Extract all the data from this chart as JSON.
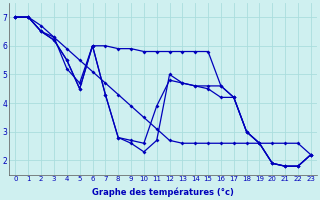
{
  "background_color": "#cff0f0",
  "grid_color": "#aadddd",
  "line_color": "#0000bb",
  "xlim": [
    -0.5,
    23.5
  ],
  "ylim": [
    1.5,
    7.5
  ],
  "yticks": [
    2,
    3,
    4,
    5,
    6,
    7
  ],
  "xticks": [
    0,
    1,
    2,
    3,
    4,
    5,
    6,
    7,
    8,
    9,
    10,
    11,
    12,
    13,
    14,
    15,
    16,
    17,
    18,
    19,
    20,
    21,
    22,
    23
  ],
  "xlabel": "Graphe des températures (°c)",
  "series": [
    [
      7.0,
      7.0,
      6.7,
      6.3,
      5.9,
      5.5,
      5.1,
      4.7,
      4.3,
      3.9,
      3.5,
      3.1,
      2.7,
      2.6,
      2.6,
      2.6,
      2.6,
      2.6,
      2.6,
      2.6,
      2.6,
      2.6,
      2.6,
      2.2
    ],
    [
      7.0,
      7.0,
      6.5,
      6.3,
      5.2,
      4.7,
      6.0,
      6.0,
      5.9,
      5.9,
      5.8,
      5.8,
      5.8,
      5.8,
      5.8,
      5.8,
      4.6,
      4.2,
      3.0,
      2.6,
      1.9,
      1.8,
      1.8,
      2.2
    ],
    [
      7.0,
      7.0,
      6.5,
      6.2,
      5.5,
      4.5,
      6.0,
      4.3,
      2.8,
      2.7,
      2.6,
      3.9,
      4.8,
      4.7,
      4.6,
      4.6,
      4.6,
      4.2,
      3.0,
      2.6,
      1.9,
      1.8,
      1.8,
      2.2
    ],
    [
      7.0,
      7.0,
      6.5,
      6.2,
      5.5,
      4.5,
      6.0,
      4.3,
      2.8,
      2.6,
      2.3,
      2.7,
      5.0,
      4.7,
      4.6,
      4.5,
      4.2,
      4.2,
      3.0,
      2.6,
      1.9,
      1.8,
      1.8,
      2.2
    ]
  ]
}
